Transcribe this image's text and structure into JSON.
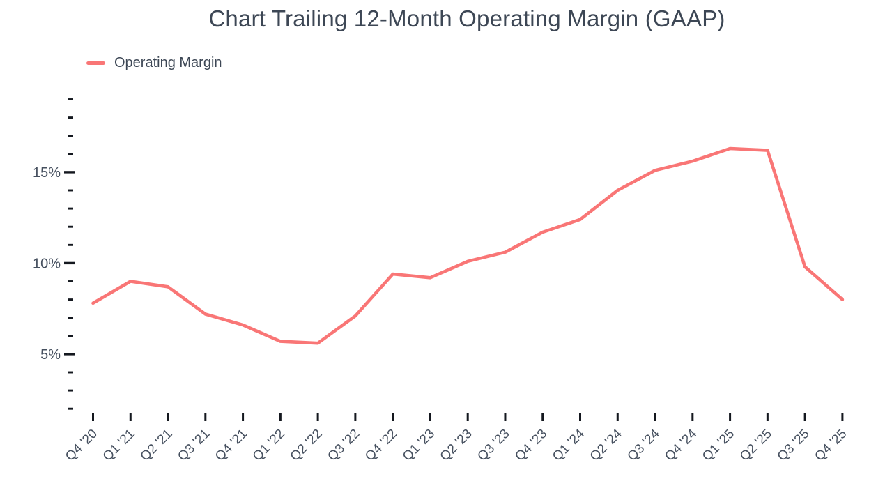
{
  "chart_data": {
    "type": "line",
    "title": "Chart Trailing 12-Month Operating Margin (GAAP)",
    "legend": [
      {
        "label": "Operating Margin",
        "color": "#f97676"
      }
    ],
    "legend_position": "top-left",
    "categories": [
      "Q4 '20",
      "Q1 '21",
      "Q2 '21",
      "Q3 '21",
      "Q4 '21",
      "Q1 '22",
      "Q2 '22",
      "Q3 '22",
      "Q4 '22",
      "Q1 '23",
      "Q2 '23",
      "Q3 '23",
      "Q4 '23",
      "Q1 '24",
      "Q2 '24",
      "Q3 '24",
      "Q4 '24",
      "Q1 '25",
      "Q2 '25",
      "Q3 '25",
      "Q4 '25"
    ],
    "series": [
      {
        "name": "Operating Margin",
        "unit": "%",
        "values": [
          7.8,
          9.0,
          8.7,
          7.2,
          6.6,
          5.7,
          5.6,
          7.1,
          9.4,
          9.2,
          10.1,
          10.6,
          11.7,
          12.4,
          14.0,
          15.1,
          15.6,
          16.3,
          16.2,
          9.8,
          8.0
        ]
      }
    ],
    "xlabel": "",
    "ylabel": "",
    "y_axis": {
      "range": [
        2,
        19
      ],
      "minor_tick_step": 1,
      "major_ticks": [
        5,
        10,
        15
      ],
      "major_tick_labels": [
        "5%",
        "10%",
        "15%"
      ]
    },
    "grid": false,
    "colors": {
      "line": "#f97676",
      "text": "#3d4755",
      "axis_label": "#46505f",
      "tick": "#14181f",
      "background": "#ffffff"
    }
  }
}
